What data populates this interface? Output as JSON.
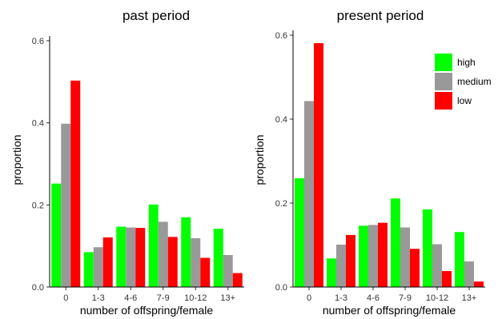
{
  "chart_data": [
    {
      "type": "bar",
      "title": "past period",
      "xlabel": "number of offspring/female",
      "ylabel": "proportion",
      "ylim": [
        0,
        0.6
      ],
      "yticks": [
        "0.0",
        "0.2",
        "0.4",
        "0.6"
      ],
      "categories": [
        "0",
        "1-3",
        "4-6",
        "7-9",
        "10-12",
        "13+"
      ],
      "series": [
        {
          "name": "high",
          "color": "#00ff00",
          "values": [
            0.252,
            0.085,
            0.147,
            0.201,
            0.17,
            0.142
          ]
        },
        {
          "name": "medium",
          "color": "#999999",
          "values": [
            0.398,
            0.097,
            0.145,
            0.159,
            0.119,
            0.078
          ]
        },
        {
          "name": "low",
          "color": "#ff0000",
          "values": [
            0.503,
            0.121,
            0.144,
            0.122,
            0.071,
            0.034
          ]
        }
      ],
      "legend": null,
      "grid": false
    },
    {
      "type": "bar",
      "title": "present period",
      "xlabel": "number of offspring/female",
      "ylabel": "proportion",
      "ylim": [
        0,
        0.6
      ],
      "yticks": [
        "0.0",
        "0.2",
        "0.4",
        "0.6"
      ],
      "categories": [
        "0",
        "1-3",
        "4-6",
        "7-9",
        "10-12",
        "13+"
      ],
      "series": [
        {
          "name": "high",
          "color": "#00ff00",
          "values": [
            0.259,
            0.068,
            0.146,
            0.211,
            0.185,
            0.131
          ]
        },
        {
          "name": "medium",
          "color": "#999999",
          "values": [
            0.443,
            0.101,
            0.148,
            0.142,
            0.102,
            0.061
          ]
        },
        {
          "name": "low",
          "color": "#ff0000",
          "values": [
            0.581,
            0.124,
            0.153,
            0.091,
            0.038,
            0.013
          ]
        }
      ],
      "legend": "top-right",
      "grid": false
    }
  ]
}
